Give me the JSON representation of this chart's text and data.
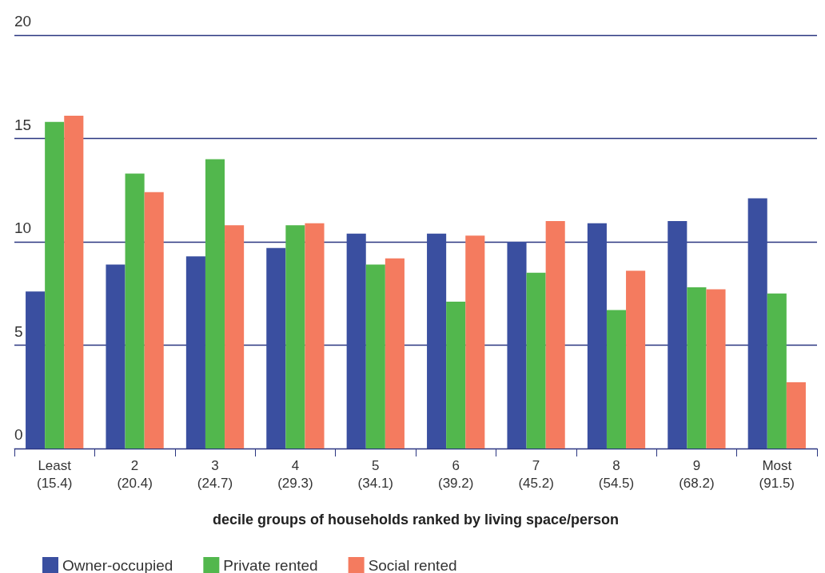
{
  "chart_data": {
    "type": "bar",
    "xlabel": "decile groups of households ranked by living space/person",
    "categories": [
      "Least\n(15.4)",
      "2\n(20.4)",
      "3\n(24.7)",
      "4\n(29.3)",
      "5\n(34.1)",
      "6\n(39.2)",
      "7\n(45.2)",
      "8\n(54.5)",
      "9\n(68.2)",
      "Most\n(91.5)"
    ],
    "series": [
      {
        "name": "Owner-occupied",
        "color": "#3a4fa0",
        "values": [
          7.6,
          8.9,
          9.3,
          9.7,
          10.4,
          10.4,
          10.0,
          10.9,
          11.0,
          12.1
        ]
      },
      {
        "name": "Private rented",
        "color": "#52b74d",
        "values": [
          15.8,
          13.3,
          14.0,
          10.8,
          8.9,
          7.1,
          8.5,
          6.7,
          7.8,
          7.5
        ]
      },
      {
        "name": "Social rented",
        "color": "#f47b5f",
        "values": [
          16.1,
          12.4,
          10.8,
          10.9,
          9.2,
          10.3,
          11.0,
          8.6,
          7.7,
          3.2
        ]
      }
    ],
    "ylim": [
      0,
      20
    ],
    "yticks": [
      0,
      5,
      10,
      15,
      20
    ],
    "grid": "y",
    "legend": "bottom left"
  }
}
